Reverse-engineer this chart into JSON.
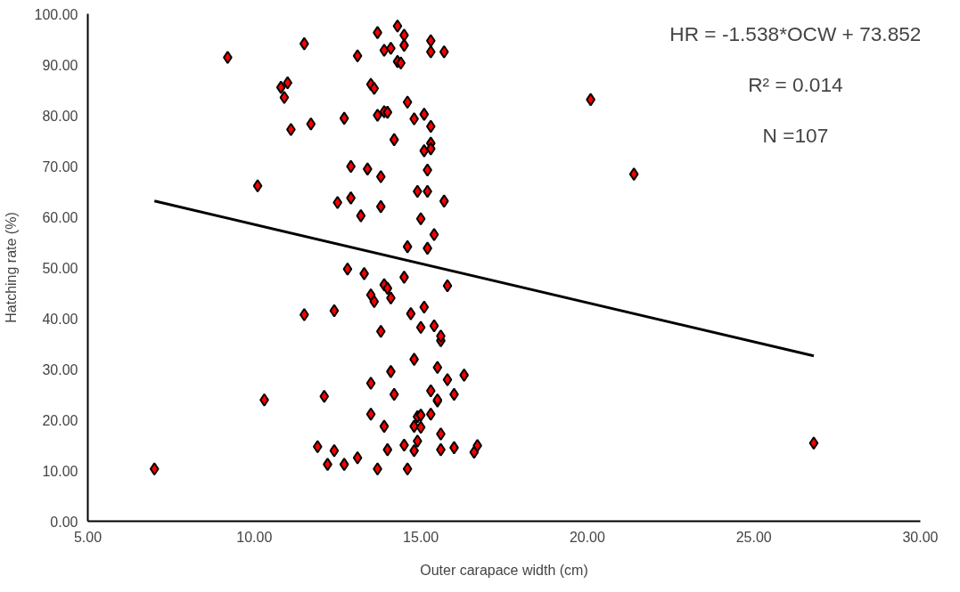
{
  "chart_data": {
    "type": "scatter",
    "xlabel": "Outer carapace width (cm)",
    "ylabel": "Hatching rate (%)",
    "xlim": [
      5,
      30
    ],
    "ylim": [
      0,
      100
    ],
    "xticks": [
      {
        "value": 5,
        "label": "5.00"
      },
      {
        "value": 10,
        "label": "10.00"
      },
      {
        "value": 15,
        "label": "15.00"
      },
      {
        "value": 20,
        "label": "20.00"
      },
      {
        "value": 25,
        "label": "25.00"
      },
      {
        "value": 30,
        "label": "30.00"
      }
    ],
    "yticks": [
      {
        "value": 0,
        "label": "0.00"
      },
      {
        "value": 10,
        "label": "10.00"
      },
      {
        "value": 20,
        "label": "20.00"
      },
      {
        "value": 30,
        "label": "30.00"
      },
      {
        "value": 40,
        "label": "40.00"
      },
      {
        "value": 50,
        "label": "50.00"
      },
      {
        "value": 60,
        "label": "60.00"
      },
      {
        "value": 70,
        "label": "70.00"
      },
      {
        "value": 80,
        "label": "80.00"
      },
      {
        "value": 90,
        "label": "90.00"
      },
      {
        "value": 100,
        "label": "100.00"
      }
    ],
    "grid": false,
    "annotations": [
      "HR = -1.538*OCW + 73.852",
      "R² = 0.014",
      "N =107"
    ],
    "series": [
      {
        "color": "#ff0000",
        "marker": "diamond",
        "x": [
          7.0,
          9.2,
          10.1,
          10.3,
          10.8,
          11.0,
          10.9,
          11.1,
          11.5,
          11.5,
          11.7,
          11.9,
          12.1,
          12.2,
          12.4,
          12.4,
          12.5,
          12.7,
          12.7,
          12.9,
          12.8,
          12.9,
          13.1,
          13.1,
          13.2,
          13.3,
          13.4,
          13.5,
          13.5,
          13.6,
          13.5,
          13.5,
          13.6,
          13.7,
          13.7,
          13.7,
          13.8,
          13.8,
          13.9,
          13.8,
          13.9,
          13.9,
          13.9,
          14.0,
          14.0,
          14.0,
          14.1,
          14.1,
          14.1,
          14.2,
          14.2,
          14.3,
          14.3,
          14.4,
          14.5,
          14.5,
          14.5,
          14.5,
          14.6,
          14.6,
          14.6,
          14.7,
          14.8,
          14.8,
          14.8,
          14.8,
          14.9,
          14.9,
          14.9,
          15.0,
          15.0,
          15.0,
          15.0,
          15.1,
          15.1,
          15.1,
          15.2,
          15.2,
          15.2,
          15.3,
          15.3,
          15.3,
          15.3,
          15.3,
          15.3,
          15.3,
          15.4,
          15.4,
          15.5,
          15.5,
          15.5,
          15.6,
          15.6,
          15.6,
          15.6,
          15.7,
          15.7,
          15.8,
          15.8,
          16.0,
          16.0,
          16.3,
          16.6,
          16.7,
          20.1,
          21.4,
          26.8
        ],
        "values": [
          10.3,
          91.4,
          66.1,
          23.9,
          85.5,
          86.4,
          83.5,
          77.2,
          94.1,
          40.7,
          78.3,
          14.7,
          24.6,
          11.2,
          41.5,
          13.9,
          62.8,
          11.2,
          79.4,
          63.7,
          49.7,
          69.9,
          12.5,
          91.7,
          60.2,
          48.8,
          69.4,
          86.1,
          44.6,
          43.3,
          21.1,
          27.2,
          85.3,
          96.3,
          10.3,
          80.0,
          62.0,
          37.4,
          80.7,
          67.9,
          46.6,
          92.8,
          18.7,
          80.6,
          14.1,
          45.9,
          93.2,
          44.0,
          29.5,
          75.2,
          25.0,
          90.6,
          97.6,
          90.3,
          48.1,
          15.0,
          95.8,
          93.8,
          54.1,
          10.3,
          82.6,
          40.9,
          31.9,
          79.3,
          18.7,
          13.9,
          65.0,
          15.8,
          20.6,
          18.5,
          38.2,
          59.6,
          20.9,
          73.0,
          42.2,
          80.2,
          65.0,
          69.2,
          53.8,
          21.1,
          25.7,
          92.5,
          94.7,
          74.5,
          77.8,
          73.4,
          56.5,
          38.5,
          30.3,
          23.7,
          23.9,
          35.6,
          36.5,
          17.2,
          14.1,
          63.1,
          92.5,
          27.9,
          46.4,
          25.0,
          14.5,
          28.8,
          13.6,
          14.9,
          83.1,
          68.4,
          15.4
        ]
      },
      {
        "type": "line",
        "color": "#000000",
        "line_style": "solid",
        "marker": "none",
        "x": [
          7.0,
          26.8
        ],
        "values": [
          63.1,
          32.6
        ]
      }
    ]
  }
}
